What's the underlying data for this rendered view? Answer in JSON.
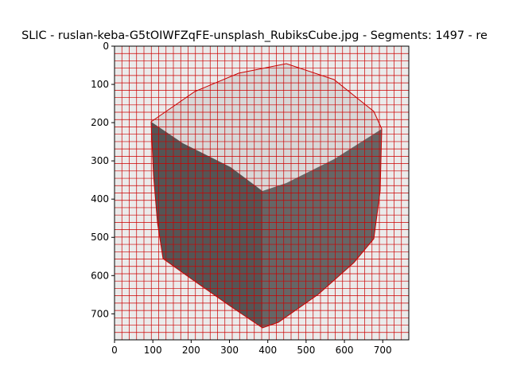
{
  "chart_data": {
    "type": "heatmap",
    "title": "SLIC - ruslan-keba-G5tOIWFZqFE-unsplash_RubiksCube.jpg - Segments: 1497 - re",
    "xlabel": "",
    "ylabel": "",
    "xlim": [
      0,
      768
    ],
    "ylim": [
      768,
      0
    ],
    "x_ticks": [
      0,
      100,
      200,
      300,
      400,
      500,
      600,
      700
    ],
    "y_ticks": [
      0,
      100,
      200,
      300,
      400,
      500,
      600,
      700
    ],
    "grid": false,
    "image_content": "grayscale photo of a Rubik's cube with red SLIC superpixel boundaries",
    "boundary_color": "#cc0000",
    "cube_top_color": "#d8d8d8",
    "cube_left_color": "#555555",
    "cube_right_color": "#666666",
    "background_color": "#ebebeb"
  }
}
